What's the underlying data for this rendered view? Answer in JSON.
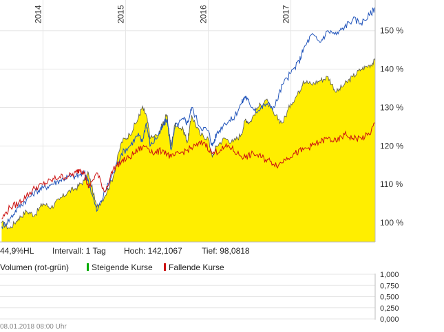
{
  "chart_data": {
    "type": "area",
    "x_ticks": [
      "2014",
      "2015",
      "2016",
      "2017"
    ],
    "y_ticks": [
      "100 %",
      "110 %",
      "120 %",
      "130 %",
      "140 %",
      "150 %"
    ],
    "ylim": [
      95,
      158
    ],
    "grid": true,
    "series": [
      {
        "color": "#ffee00",
        "style": "area",
        "values": [
          [
            2013.5,
            100
          ],
          [
            2013.6,
            98.5
          ],
          [
            2013.7,
            101
          ],
          [
            2013.8,
            103
          ],
          [
            2013.9,
            102
          ],
          [
            2014.0,
            105
          ],
          [
            2014.1,
            104
          ],
          [
            2014.2,
            106
          ],
          [
            2014.3,
            108
          ],
          [
            2014.4,
            109
          ],
          [
            2014.5,
            111
          ],
          [
            2014.55,
            113
          ],
          [
            2014.65,
            104
          ],
          [
            2014.75,
            107
          ],
          [
            2014.85,
            112
          ],
          [
            2014.95,
            121
          ],
          [
            2015.05,
            123
          ],
          [
            2015.15,
            127
          ],
          [
            2015.2,
            130
          ],
          [
            2015.25,
            128
          ],
          [
            2015.3,
            122
          ],
          [
            2015.4,
            123
          ],
          [
            2015.45,
            126
          ],
          [
            2015.5,
            128
          ],
          [
            2015.55,
            120
          ],
          [
            2015.6,
            126
          ],
          [
            2015.7,
            124
          ],
          [
            2015.75,
            121
          ],
          [
            2015.8,
            128
          ],
          [
            2015.9,
            123
          ],
          [
            2016.0,
            122
          ],
          [
            2016.05,
            117
          ],
          [
            2016.1,
            120
          ],
          [
            2016.2,
            122
          ],
          [
            2016.3,
            121
          ],
          [
            2016.4,
            123
          ],
          [
            2016.45,
            127
          ],
          [
            2016.5,
            126
          ],
          [
            2016.6,
            130
          ],
          [
            2016.7,
            132
          ],
          [
            2016.8,
            128
          ],
          [
            2016.9,
            126
          ],
          [
            2017.0,
            131
          ],
          [
            2017.1,
            134
          ],
          [
            2017.15,
            137
          ],
          [
            2017.25,
            136
          ],
          [
            2017.35,
            137
          ],
          [
            2017.45,
            138
          ],
          [
            2017.55,
            134
          ],
          [
            2017.65,
            136
          ],
          [
            2017.75,
            138
          ],
          [
            2017.85,
            140
          ],
          [
            2017.95,
            141
          ],
          [
            2018.02,
            142.1
          ]
        ]
      },
      {
        "color": "#2255bb",
        "style": "line",
        "values": [
          [
            2013.5,
            99
          ],
          [
            2013.6,
            101
          ],
          [
            2013.7,
            104
          ],
          [
            2013.8,
            106
          ],
          [
            2013.9,
            108
          ],
          [
            2014.0,
            109
          ],
          [
            2014.1,
            110
          ],
          [
            2014.2,
            111
          ],
          [
            2014.3,
            112
          ],
          [
            2014.4,
            112
          ],
          [
            2014.5,
            113
          ],
          [
            2014.55,
            111
          ],
          [
            2014.65,
            103
          ],
          [
            2014.75,
            108
          ],
          [
            2014.85,
            113
          ],
          [
            2014.95,
            118
          ],
          [
            2015.05,
            120
          ],
          [
            2015.15,
            123
          ],
          [
            2015.2,
            121
          ],
          [
            2015.25,
            126
          ],
          [
            2015.3,
            120
          ],
          [
            2015.4,
            123
          ],
          [
            2015.45,
            125
          ],
          [
            2015.5,
            127
          ],
          [
            2015.55,
            119
          ],
          [
            2015.6,
            125
          ],
          [
            2015.7,
            127
          ],
          [
            2015.75,
            126
          ],
          [
            2015.8,
            130
          ],
          [
            2015.9,
            125
          ],
          [
            2016.0,
            124
          ],
          [
            2016.05,
            120
          ],
          [
            2016.1,
            123
          ],
          [
            2016.2,
            126
          ],
          [
            2016.3,
            127
          ],
          [
            2016.4,
            131
          ],
          [
            2016.45,
            133
          ],
          [
            2016.5,
            131
          ],
          [
            2016.6,
            129
          ],
          [
            2016.7,
            131
          ],
          [
            2016.8,
            130
          ],
          [
            2016.9,
            136
          ],
          [
            2017.0,
            139
          ],
          [
            2017.1,
            142
          ],
          [
            2017.15,
            145
          ],
          [
            2017.25,
            149
          ],
          [
            2017.35,
            147
          ],
          [
            2017.45,
            150
          ],
          [
            2017.55,
            149
          ],
          [
            2017.65,
            151
          ],
          [
            2017.75,
            153
          ],
          [
            2017.85,
            152
          ],
          [
            2017.95,
            154
          ],
          [
            2018.02,
            156
          ]
        ]
      },
      {
        "color": "#cc1111",
        "style": "line",
        "values": [
          [
            2013.5,
            101
          ],
          [
            2013.6,
            104
          ],
          [
            2013.7,
            105
          ],
          [
            2013.8,
            107
          ],
          [
            2013.9,
            109
          ],
          [
            2014.0,
            110
          ],
          [
            2014.1,
            111
          ],
          [
            2014.2,
            112
          ],
          [
            2014.3,
            112
          ],
          [
            2014.4,
            113
          ],
          [
            2014.45,
            114
          ],
          [
            2014.5,
            113
          ],
          [
            2014.55,
            109
          ],
          [
            2014.65,
            113
          ],
          [
            2014.75,
            108
          ],
          [
            2014.85,
            114
          ],
          [
            2014.95,
            116
          ],
          [
            2015.05,
            117
          ],
          [
            2015.15,
            119
          ],
          [
            2015.25,
            120
          ],
          [
            2015.35,
            118
          ],
          [
            2015.45,
            119
          ],
          [
            2015.55,
            117
          ],
          [
            2015.65,
            118
          ],
          [
            2015.75,
            119
          ],
          [
            2015.85,
            120
          ],
          [
            2015.95,
            121
          ],
          [
            2016.05,
            118
          ],
          [
            2016.15,
            119
          ],
          [
            2016.25,
            120
          ],
          [
            2016.35,
            118
          ],
          [
            2016.45,
            117
          ],
          [
            2016.55,
            118
          ],
          [
            2016.65,
            117
          ],
          [
            2016.75,
            116
          ],
          [
            2016.85,
            115
          ],
          [
            2016.95,
            117
          ],
          [
            2017.05,
            118
          ],
          [
            2017.15,
            119
          ],
          [
            2017.25,
            120
          ],
          [
            2017.35,
            121
          ],
          [
            2017.45,
            122
          ],
          [
            2017.55,
            121
          ],
          [
            2017.65,
            123
          ],
          [
            2017.75,
            122
          ],
          [
            2017.85,
            122
          ],
          [
            2017.95,
            123
          ],
          [
            2018.02,
            126
          ]
        ]
      }
    ]
  },
  "info": {
    "range": "44,9%HL",
    "interval": "Intervall: 1 Tag",
    "high": "Hoch: 142,1067",
    "low": "Tief: 98,0818"
  },
  "volume": {
    "title": "Volumen (rot-grün)",
    "rising_label": "Steigende Kurse",
    "rising_color": "#00aa00",
    "falling_label": "Fallende Kurse",
    "falling_color": "#cc1111",
    "y_ticks": [
      "1,000",
      "0,750",
      "0,500",
      "0,250",
      "0,000"
    ]
  },
  "footer": {
    "timestamp": "08.01.2018 08:00 Uhr"
  }
}
